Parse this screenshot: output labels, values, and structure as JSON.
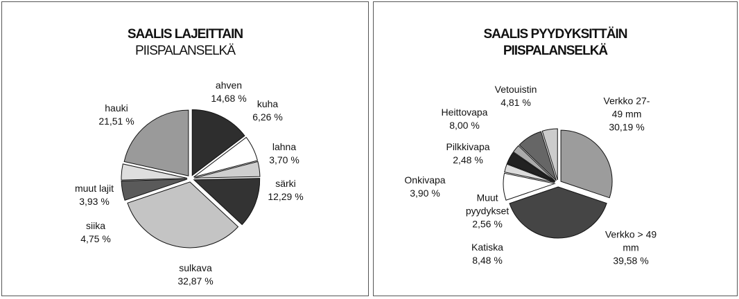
{
  "chart_data": [
    {
      "type": "pie",
      "title": "SAALIS LAJEITTAIN",
      "subtitle": "PIISPALANSELKÄ",
      "categories": [
        "ahven",
        "kuha",
        "lahna",
        "särki",
        "sulkava",
        "siika",
        "muut lajit",
        "hauki"
      ],
      "values": [
        14.68,
        6.26,
        3.7,
        12.29,
        32.87,
        4.75,
        3.93,
        21.51
      ],
      "value_labels": [
        "14,68 %",
        "6,26 %",
        "3,70 %",
        "12,29 %",
        "32,87 %",
        "4,75 %",
        "3,93 %",
        "21,51 %"
      ],
      "colors": [
        "#2e2e2e",
        "#ffffff",
        "#cfcfcf",
        "#333333",
        "#c4c4c4",
        "#5a5a5a",
        "#dedede",
        "#9a9a9a"
      ]
    },
    {
      "type": "pie",
      "title": "SAALIS PYYDYKSITTÄIN",
      "subtitle": "PIISPALANSELKÄ",
      "categories": [
        "Verkko 27-49 mm",
        "Verkko > 49 mm",
        "Katiska",
        "Muut pyydykset",
        "Onkivapa",
        "Pilkkivapa",
        "Heittovapa",
        "Vetouistin"
      ],
      "values": [
        30.19,
        39.58,
        8.48,
        2.56,
        3.9,
        2.48,
        8.0,
        4.81
      ],
      "value_labels": [
        "30,19 %",
        "39,58 %",
        "8,48 %",
        "2,56 %",
        "3,90 %",
        "2,48 %",
        "8,00 %",
        "4,81 %"
      ],
      "colors": [
        "#9c9c9c",
        "#454545",
        "#ffffff",
        "#dcdcdc",
        "#222222",
        "#aaaaaa",
        "#666666",
        "#cccccc"
      ]
    }
  ]
}
